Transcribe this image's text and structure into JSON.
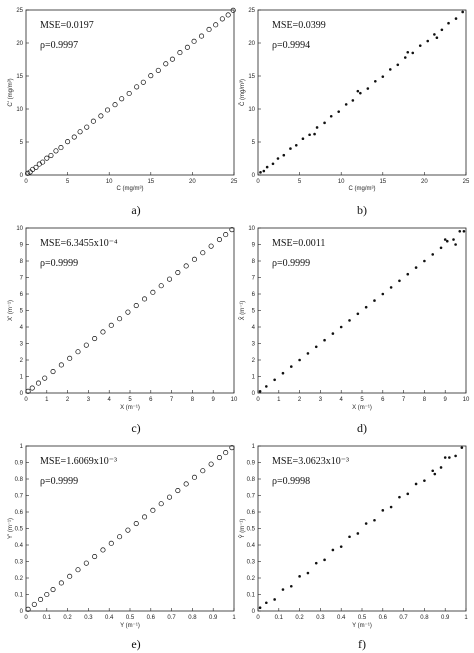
{
  "chart_data": [
    {
      "type": "scatter",
      "panel": "a)",
      "xlabel": "C (mg/m³)",
      "ylabel": "C' (mg/m³)",
      "xlim": [
        0,
        25
      ],
      "ylim": [
        0,
        25
      ],
      "xticks": [
        "0",
        "5",
        "10",
        "15",
        "20",
        "25"
      ],
      "yticks": [
        "0",
        "5",
        "10",
        "15",
        "20",
        "25"
      ],
      "marker": "open-circle",
      "annotations": [
        "MSE=0.0197",
        "ρ=0.9997"
      ],
      "series": [
        {
          "x": [
            0.2,
            0.5,
            0.8,
            1.2,
            1.6,
            2.0,
            2.5,
            3.0,
            3.6,
            4.2,
            5.0,
            5.8,
            6.5,
            7.3,
            8.1,
            9.0,
            9.8,
            10.7,
            11.5,
            12.4,
            13.3,
            14.1,
            15.0,
            15.9,
            16.8,
            17.6,
            18.5,
            19.4,
            20.2,
            21.1,
            22.0,
            22.8,
            23.6,
            24.3,
            24.9
          ],
          "y": [
            0.25,
            0.45,
            0.85,
            1.15,
            1.65,
            1.95,
            2.55,
            2.95,
            3.65,
            4.15,
            5.05,
            5.75,
            6.55,
            7.25,
            8.15,
            8.95,
            9.85,
            10.65,
            11.55,
            12.35,
            13.35,
            14.05,
            15.05,
            15.85,
            16.85,
            17.55,
            18.55,
            19.35,
            20.25,
            21.05,
            22.05,
            22.75,
            23.65,
            24.25,
            24.95
          ]
        }
      ]
    },
    {
      "type": "scatter",
      "panel": "b)",
      "xlabel": "C (mg/m³)",
      "ylabel": "Ĉ (mg/m³)",
      "xlim": [
        0,
        25
      ],
      "ylim": [
        0,
        25
      ],
      "xticks": [
        "0",
        "5",
        "10",
        "15",
        "20",
        "25"
      ],
      "yticks": [
        "0",
        "5",
        "10",
        "15",
        "20",
        "25"
      ],
      "marker": "dot",
      "annotations": [
        "MSE=0.0399",
        "ρ=0.9994"
      ],
      "series": [
        {
          "x": [
            0.3,
            0.7,
            1.1,
            1.8,
            2.4,
            3.1,
            3.9,
            4.6,
            5.4,
            6.2,
            7.1,
            8.0,
            8.8,
            9.7,
            10.6,
            11.4,
            12.3,
            13.2,
            14.1,
            15.0,
            15.9,
            16.8,
            17.7,
            18.6,
            19.5,
            20.4,
            21.2,
            22.1,
            22.9,
            23.8,
            24.6,
            21.5,
            18.0,
            12.0,
            6.8
          ],
          "y": [
            0.4,
            0.6,
            1.2,
            1.7,
            2.5,
            3.0,
            4.0,
            4.5,
            5.5,
            6.1,
            7.2,
            7.9,
            8.9,
            9.6,
            10.7,
            11.3,
            12.4,
            13.1,
            14.2,
            14.9,
            16.0,
            16.7,
            17.8,
            18.5,
            19.6,
            20.3,
            21.3,
            22.0,
            23.0,
            23.7,
            24.7,
            20.8,
            18.6,
            12.7,
            6.2
          ]
        }
      ]
    },
    {
      "type": "scatter",
      "panel": "c)",
      "xlabel": "X (m⁻¹)",
      "ylabel": "X' (m⁻¹)",
      "xlim": [
        0,
        10
      ],
      "ylim": [
        0,
        10
      ],
      "xticks": [
        "0",
        "1",
        "2",
        "3",
        "4",
        "5",
        "6",
        "7",
        "8",
        "9",
        "10"
      ],
      "yticks": [
        "0",
        "1",
        "2",
        "3",
        "4",
        "5",
        "6",
        "7",
        "8",
        "9",
        "10"
      ],
      "marker": "open-circle",
      "annotations": [
        "MSE=6.3455x10⁻⁴",
        "ρ=0.9999"
      ],
      "series": [
        {
          "x": [
            0.1,
            0.3,
            0.6,
            0.9,
            1.3,
            1.7,
            2.1,
            2.5,
            2.9,
            3.3,
            3.7,
            4.1,
            4.5,
            4.9,
            5.3,
            5.7,
            6.1,
            6.5,
            6.9,
            7.3,
            7.7,
            8.1,
            8.5,
            8.9,
            9.3,
            9.6,
            9.9
          ],
          "y": [
            0.1,
            0.3,
            0.6,
            0.9,
            1.3,
            1.7,
            2.1,
            2.5,
            2.9,
            3.3,
            3.7,
            4.1,
            4.5,
            4.9,
            5.3,
            5.7,
            6.1,
            6.5,
            6.9,
            7.3,
            7.7,
            8.1,
            8.5,
            8.9,
            9.3,
            9.6,
            9.9
          ]
        }
      ]
    },
    {
      "type": "scatter",
      "panel": "d)",
      "xlabel": "X (m⁻¹)",
      "ylabel": "X̂ (m⁻¹)",
      "xlim": [
        0,
        10
      ],
      "ylim": [
        0,
        10
      ],
      "xticks": [
        "0",
        "1",
        "2",
        "3",
        "4",
        "5",
        "6",
        "7",
        "8",
        "9",
        "10"
      ],
      "yticks": [
        "0",
        "1",
        "2",
        "3",
        "4",
        "5",
        "6",
        "7",
        "8",
        "9",
        "10"
      ],
      "marker": "dot",
      "annotations": [
        "MSE=0.0011",
        "ρ=0.9999"
      ],
      "series": [
        {
          "x": [
            0.1,
            0.4,
            0.8,
            1.2,
            1.6,
            2.0,
            2.4,
            2.8,
            3.2,
            3.6,
            4.0,
            4.4,
            4.8,
            5.2,
            5.6,
            6.0,
            6.4,
            6.8,
            7.2,
            7.6,
            8.0,
            8.4,
            8.8,
            9.1,
            9.4,
            9.7,
            9.9,
            9.5,
            9.0
          ],
          "y": [
            0.1,
            0.4,
            0.8,
            1.2,
            1.6,
            2.0,
            2.4,
            2.8,
            3.2,
            3.6,
            4.0,
            4.4,
            4.8,
            5.2,
            5.6,
            6.0,
            6.4,
            6.8,
            7.2,
            7.6,
            8.0,
            8.4,
            8.8,
            9.2,
            9.3,
            9.8,
            9.8,
            9.0,
            9.3
          ]
        }
      ]
    },
    {
      "type": "scatter",
      "panel": "e)",
      "xlabel": "Y (m⁻¹)",
      "ylabel": "Y' (m⁻¹)",
      "xlim": [
        0,
        1
      ],
      "ylim": [
        0,
        1
      ],
      "xticks": [
        "0",
        "0.1",
        "0.2",
        "0.3",
        "0.4",
        "0.5",
        "0.6",
        "0.7",
        "0.8",
        "0.9",
        "1"
      ],
      "yticks": [
        "0",
        "0.1",
        "0.2",
        "0.3",
        "0.4",
        "0.5",
        "0.6",
        "0.7",
        "0.8",
        "0.9",
        "1"
      ],
      "marker": "open-circle",
      "annotations": [
        "MSE=1.6069x10⁻³",
        "ρ=0.9999"
      ],
      "series": [
        {
          "x": [
            0.01,
            0.04,
            0.07,
            0.1,
            0.13,
            0.17,
            0.21,
            0.25,
            0.29,
            0.33,
            0.37,
            0.41,
            0.45,
            0.49,
            0.53,
            0.57,
            0.61,
            0.65,
            0.69,
            0.73,
            0.77,
            0.81,
            0.85,
            0.89,
            0.93,
            0.96,
            0.99
          ],
          "y": [
            0.01,
            0.04,
            0.07,
            0.1,
            0.13,
            0.17,
            0.21,
            0.25,
            0.29,
            0.33,
            0.37,
            0.41,
            0.45,
            0.49,
            0.53,
            0.57,
            0.61,
            0.65,
            0.69,
            0.73,
            0.77,
            0.81,
            0.85,
            0.89,
            0.93,
            0.96,
            0.99
          ]
        }
      ]
    },
    {
      "type": "scatter",
      "panel": "f)",
      "xlabel": "Y (m⁻¹)",
      "ylabel": "Ŷ (m⁻¹)",
      "xlim": [
        0,
        1
      ],
      "ylim": [
        0,
        1
      ],
      "xticks": [
        "0",
        "0.1",
        "0.2",
        "0.3",
        "0.4",
        "0.5",
        "0.6",
        "0.7",
        "0.8",
        "0.9",
        "1"
      ],
      "yticks": [
        "0",
        "0.1",
        "0.2",
        "0.3",
        "0.4",
        "0.5",
        "0.6",
        "0.7",
        "0.8",
        "0.9",
        "1"
      ],
      "marker": "dot",
      "annotations": [
        "MSE=3.0623x10⁻³",
        "ρ=0.9998"
      ],
      "series": [
        {
          "x": [
            0.01,
            0.04,
            0.08,
            0.12,
            0.16,
            0.2,
            0.24,
            0.28,
            0.32,
            0.36,
            0.4,
            0.44,
            0.48,
            0.52,
            0.56,
            0.6,
            0.64,
            0.68,
            0.72,
            0.76,
            0.8,
            0.84,
            0.88,
            0.92,
            0.95,
            0.98,
            0.9,
            0.85
          ],
          "y": [
            0.02,
            0.05,
            0.07,
            0.13,
            0.15,
            0.21,
            0.23,
            0.29,
            0.31,
            0.37,
            0.39,
            0.45,
            0.47,
            0.53,
            0.55,
            0.61,
            0.63,
            0.69,
            0.71,
            0.77,
            0.79,
            0.85,
            0.87,
            0.93,
            0.94,
            0.99,
            0.93,
            0.83
          ]
        }
      ]
    }
  ]
}
